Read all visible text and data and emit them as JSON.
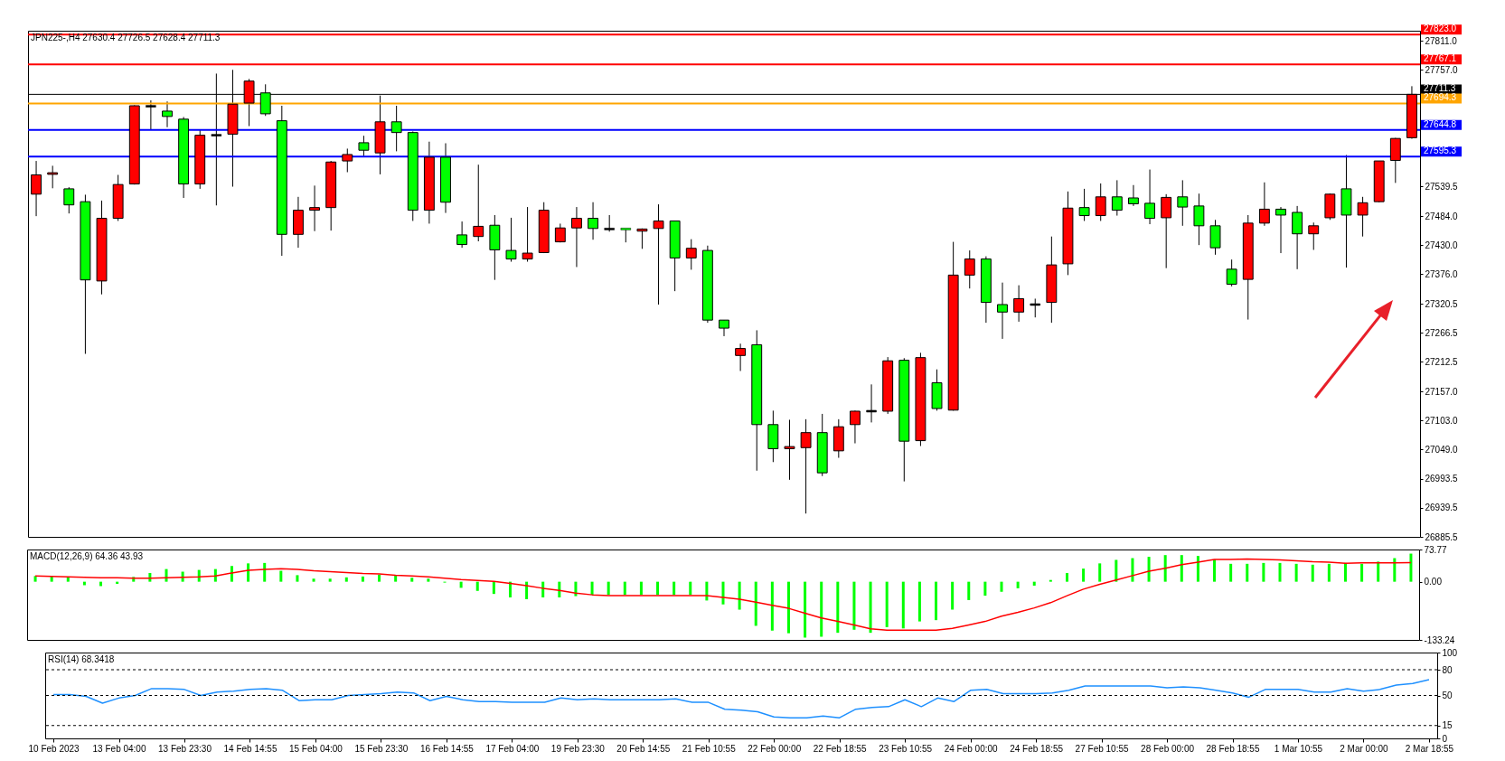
{
  "chart_data": [
    {
      "type": "candlestick",
      "title": "JPN225-,H4 27630.4 27726.5 27628.4 27711.3",
      "tick_labels": "y",
      "categories": [
        null,
        null,
        null,
        null,
        null,
        null,
        null,
        null,
        null,
        null,
        null,
        null,
        null,
        null,
        null,
        null,
        null,
        null,
        null,
        null,
        null,
        null,
        null,
        null,
        null,
        null,
        null,
        null,
        null,
        null,
        null,
        null,
        null,
        null,
        null,
        null,
        null,
        null,
        null,
        null,
        null,
        null,
        null,
        null,
        null,
        null,
        null,
        null,
        null,
        null,
        null,
        null,
        null,
        null,
        null,
        null,
        null,
        null,
        null,
        null,
        null,
        null,
        null,
        null,
        null,
        null,
        null,
        null,
        null,
        null,
        null,
        null,
        null,
        null,
        null,
        null,
        null,
        null,
        null,
        null,
        null,
        null,
        null,
        null,
        null
      ],
      "ohlc": [
        [
          27525,
          27587,
          27484,
          27561
        ],
        [
          27562,
          27578,
          27536,
          27565
        ],
        [
          27535,
          27538,
          27489,
          27505
        ],
        [
          27511,
          27524,
          27227,
          27365
        ],
        [
          27363,
          27513,
          27338,
          27480
        ],
        [
          27480,
          27561,
          27475,
          27543
        ],
        [
          27544,
          27691,
          27543,
          27690
        ],
        [
          27689,
          27700,
          27645,
          27689
        ],
        [
          27680,
          27698,
          27650,
          27670
        ],
        [
          27665,
          27669,
          27518,
          27544
        ],
        [
          27544,
          27646,
          27535,
          27635
        ],
        [
          27635,
          27750,
          27504,
          27635
        ],
        [
          27637,
          27757,
          27539,
          27693
        ],
        [
          27695,
          27740,
          27652,
          27736
        ],
        [
          27714,
          27730,
          27671,
          27675
        ],
        [
          27662,
          27690,
          27410,
          27450
        ],
        [
          27450,
          27520,
          27425,
          27495
        ],
        [
          27495,
          27541,
          27456,
          27500
        ],
        [
          27500,
          27587,
          27457,
          27585
        ],
        [
          27587,
          27610,
          27566,
          27599
        ],
        [
          27621,
          27634,
          27596,
          27607
        ],
        [
          27602,
          27709,
          27562,
          27660
        ],
        [
          27660,
          27690,
          27605,
          27640
        ],
        [
          27640,
          27642,
          27475,
          27495
        ],
        [
          27495,
          27623,
          27470,
          27594
        ],
        [
          27594,
          27620,
          27490,
          27510
        ],
        [
          27449,
          27474,
          27425,
          27431
        ],
        [
          27446,
          27580,
          27437,
          27465
        ],
        [
          27467,
          27486,
          27365,
          27421
        ],
        [
          27420,
          27481,
          27399,
          27404
        ],
        [
          27404,
          27501,
          27399,
          27415
        ],
        [
          27416,
          27510,
          27415,
          27495
        ],
        [
          27436,
          27470,
          27435,
          27462
        ],
        [
          27462,
          27501,
          27389,
          27480
        ],
        [
          27480,
          27510,
          27440,
          27461
        ],
        [
          27460,
          27486,
          27455,
          27460
        ],
        [
          27460,
          27460,
          27435,
          27460
        ],
        [
          27456,
          27461,
          27423,
          27460
        ],
        [
          27461,
          27506,
          27319,
          27475
        ],
        [
          27475,
          27475,
          27344,
          27406
        ],
        [
          27406,
          27441,
          27384,
          27424
        ],
        [
          27420,
          27429,
          27285,
          27290
        ],
        [
          27290,
          27290,
          27260,
          27275
        ],
        [
          27224,
          27246,
          27195,
          27237
        ],
        [
          27244,
          27271,
          27009,
          27095
        ],
        [
          27095,
          27121,
          27025,
          27050
        ],
        [
          27050,
          27104,
          26992,
          27054
        ],
        [
          27052,
          27105,
          26929,
          27080
        ],
        [
          27080,
          27115,
          26999,
          27005
        ],
        [
          27046,
          27105,
          27033,
          27091
        ],
        [
          27095,
          27121,
          27060,
          27120
        ],
        [
          27120,
          27170,
          27099,
          27120
        ],
        [
          27120,
          27221,
          27115,
          27214
        ],
        [
          27215,
          27219,
          26989,
          27064
        ],
        [
          27065,
          27229,
          27055,
          27220
        ],
        [
          27173,
          27198,
          27121,
          27125
        ],
        [
          27122,
          27436,
          27121,
          27374
        ],
        [
          27374,
          27420,
          27349,
          27404
        ],
        [
          27404,
          27409,
          27285,
          27323
        ],
        [
          27319,
          27360,
          27255,
          27305
        ],
        [
          27305,
          27355,
          27287,
          27330
        ],
        [
          27319,
          27330,
          27295,
          27319
        ],
        [
          27323,
          27446,
          27285,
          27393
        ],
        [
          27395,
          27530,
          27374,
          27499
        ],
        [
          27500,
          27535,
          27475,
          27485
        ],
        [
          27485,
          27545,
          27475,
          27520
        ],
        [
          27520,
          27551,
          27485,
          27495
        ],
        [
          27518,
          27542,
          27503,
          27507
        ],
        [
          27508,
          27571,
          27469,
          27480
        ],
        [
          27481,
          27525,
          27387,
          27519
        ],
        [
          27520,
          27551,
          27466,
          27501
        ],
        [
          27503,
          27526,
          27430,
          27466
        ],
        [
          27466,
          27477,
          27412,
          27425
        ],
        [
          27385,
          27403,
          27353,
          27357
        ],
        [
          27366,
          27486,
          27291,
          27471
        ],
        [
          27471,
          27547,
          27466,
          27497
        ],
        [
          27497,
          27501,
          27415,
          27486
        ],
        [
          27491,
          27503,
          27385,
          27451
        ],
        [
          27451,
          27472,
          27421,
          27466
        ],
        [
          27481,
          27526,
          27477,
          27525
        ],
        [
          27535,
          27598,
          27388,
          27486
        ],
        [
          27486,
          27520,
          27446,
          27509
        ],
        [
          27511,
          27587,
          27510,
          27587
        ],
        [
          27588,
          27630,
          27546,
          27629
        ],
        [
          27630.4,
          27726.5,
          27628.4,
          27711.3
        ]
      ],
      "colors": [
        "#ff0000",
        "#ff0000",
        "#00ff00",
        "#00ff00",
        "#ff0000",
        "#ff0000",
        "#ff0000",
        "#000000",
        "#00ff00",
        "#00ff00",
        "#ff0000",
        "#000000",
        "#ff0000",
        "#ff0000",
        "#00ff00",
        "#00ff00",
        "#ff0000",
        "#ff0000",
        "#ff0000",
        "#ff0000",
        "#00ff00",
        "#ff0000",
        "#00ff00",
        "#00ff00",
        "#ff0000",
        "#00ff00",
        "#00ff00",
        "#ff0000",
        "#00ff00",
        "#00ff00",
        "#ff0000",
        "#ff0000",
        "#ff0000",
        "#ff0000",
        "#00ff00",
        "#000000",
        "#00ff00",
        "#ff0000",
        "#ff0000",
        "#00ff00",
        "#ff0000",
        "#00ff00",
        "#00ff00",
        "#ff0000",
        "#00ff00",
        "#00ff00",
        "#ff0000",
        "#ff0000",
        "#00ff00",
        "#ff0000",
        "#ff0000",
        "#000000",
        "#ff0000",
        "#00ff00",
        "#ff0000",
        "#00ff00",
        "#ff0000",
        "#ff0000",
        "#00ff00",
        "#00ff00",
        "#ff0000",
        "#000000",
        "#ff0000",
        "#ff0000",
        "#00ff00",
        "#ff0000",
        "#00ff00",
        "#00ff00",
        "#00ff00",
        "#ff0000",
        "#00ff00",
        "#00ff00",
        "#00ff00",
        "#00ff00",
        "#ff0000",
        "#ff0000",
        "#00ff00",
        "#00ff00",
        "#ff0000",
        "#ff0000",
        "#00ff00",
        "#ff0000",
        "#ff0000",
        "#ff0000",
        "#ff0000"
      ],
      "ylim": [
        26885.5,
        27830
      ],
      "yticks": [
        {
          "value": 27811,
          "label": "27811.0"
        },
        {
          "value": 27757,
          "label": "27757.0"
        },
        27539.5,
        {
          "value": 27484,
          "label": "27484.0"
        },
        {
          "value": 27430,
          "label": "27430.0"
        },
        {
          "value": 27376,
          "label": "27376.0"
        },
        27320.5,
        27266.5,
        27212.5,
        {
          "value": 27157,
          "label": "27157.0"
        },
        {
          "value": 27103,
          "label": "27103.0"
        },
        {
          "value": 27049,
          "label": "27049.0"
        },
        26993.5,
        26939.5,
        26885.5
      ],
      "ref_lines": [
        {
          "axis": "y",
          "value": 27823.0,
          "label": "27823.0",
          "color": "#ff0000"
        },
        {
          "axis": "y",
          "value": 27767.1,
          "label": "27767.1",
          "color": "#ff0000"
        },
        {
          "axis": "y",
          "value": 27711.3,
          "label": "27711.3",
          "color": "#000000"
        },
        {
          "axis": "y",
          "value": 27694.3,
          "label": "27694.3",
          "color": "#ffa500"
        },
        {
          "axis": "y",
          "value": 27644.8,
          "label": "27644.8",
          "color": "#0000ff"
        },
        {
          "axis": "y",
          "value": 27595.3,
          "label": "27595.3",
          "color": "#0000ff"
        }
      ]
    },
    {
      "type": "bar",
      "title": "MACD(12,26,9) 64.36 43.93",
      "tick_labels": "y",
      "categories": [
        null,
        null,
        null,
        null,
        null,
        null,
        null,
        null,
        null,
        null,
        null,
        null,
        null,
        null,
        null,
        null,
        null,
        null,
        null,
        null,
        null,
        null,
        null,
        null,
        null,
        null,
        null,
        null,
        null,
        null,
        null,
        null,
        null,
        null,
        null,
        null,
        null,
        null,
        null,
        null,
        null,
        null,
        null,
        null,
        null,
        null,
        null,
        null,
        null,
        null,
        null,
        null,
        null,
        null,
        null,
        null,
        null,
        null,
        null,
        null,
        null,
        null,
        null,
        null,
        null,
        null,
        null,
        null,
        null,
        null,
        null,
        null,
        null,
        null,
        null,
        null,
        null,
        null,
        null,
        null,
        null,
        null,
        null,
        null,
        null
      ],
      "series": [
        {
          "type": "bar",
          "color": "#00ff00",
          "values": [
            13,
            12,
            11,
            -8,
            -10,
            -5,
            11,
            20,
            29,
            23,
            27,
            29,
            36,
            42,
            43,
            25,
            15,
            7,
            7,
            10,
            12,
            16,
            14,
            9,
            7,
            -2,
            -14,
            -21,
            -28,
            -36,
            -40,
            -36,
            -36,
            -33,
            -30,
            -30,
            -30,
            -30,
            -30,
            -30,
            -30,
            -43,
            -52,
            -64,
            -101,
            -112,
            -118,
            -128,
            -126,
            -117,
            -110,
            -117,
            -104,
            -107,
            -91,
            -88,
            -64,
            -42,
            -32,
            -23,
            -15,
            -9,
            4,
            20,
            30,
            42,
            50,
            54,
            57,
            61,
            61,
            59,
            51,
            41,
            41,
            43,
            43,
            41,
            39,
            41,
            43,
            41,
            46,
            54,
            64.36
          ]
        },
        {
          "type": "line",
          "color": "#ff0000",
          "values": [
            13,
            12,
            11,
            10,
            9,
            9,
            8,
            8,
            9,
            10,
            11,
            13,
            20,
            26,
            28,
            30,
            28,
            25,
            23,
            21,
            19,
            18,
            15,
            13,
            11,
            8,
            5,
            3,
            1,
            -4,
            -9,
            -15,
            -20,
            -26,
            -30,
            -32,
            -32,
            -32,
            -32,
            -32,
            -32,
            -32,
            -36,
            -40,
            -47,
            -54,
            -61,
            -72,
            -83,
            -91,
            -99,
            -108,
            -111,
            -111,
            -111,
            -111,
            -107,
            -99,
            -91,
            -79,
            -70,
            -60,
            -48,
            -32,
            -17,
            -6,
            4,
            14,
            24,
            31,
            39,
            45,
            51,
            51,
            52,
            51,
            50,
            48,
            46,
            45,
            42,
            43,
            43,
            43,
            43.93
          ]
        }
      ],
      "ylim": [
        -133.24,
        73.77
      ],
      "yticks": [
        73.77,
        {
          "value": 0,
          "label": "0.00"
        },
        -133.24
      ]
    },
    {
      "type": "line",
      "title": "RSI(14) 68.3418",
      "categories": [
        "10 Feb 2023",
        null,
        null,
        null,
        "13 Feb 04:00",
        null,
        null,
        null,
        "13 Feb 23:30",
        null,
        null,
        null,
        "14 Feb 14:55",
        null,
        null,
        null,
        "15 Feb 04:00",
        null,
        null,
        null,
        "15 Feb 23:30",
        null,
        null,
        null,
        "16 Feb 14:55",
        null,
        null,
        null,
        "17 Feb 04:00",
        null,
        null,
        null,
        "19 Feb 23:30",
        null,
        null,
        null,
        "20 Feb 14:55",
        null,
        null,
        null,
        "21 Feb 10:55",
        null,
        null,
        null,
        "22 Feb 00:00",
        null,
        null,
        null,
        "22 Feb 18:55",
        null,
        null,
        null,
        "23 Feb 10:55",
        null,
        null,
        null,
        "24 Feb 00:00",
        null,
        null,
        null,
        "24 Feb 18:55",
        null,
        null,
        null,
        "27 Feb 10:55",
        null,
        null,
        null,
        "28 Feb 00:00",
        null,
        null,
        null,
        "28 Feb 18:55",
        null,
        null,
        null,
        "1 Mar 10:55",
        null,
        null,
        null,
        "2 Mar 00:00",
        null,
        null,
        null,
        "2 Mar 18:55"
      ],
      "series": [
        {
          "color": "#1e90ff",
          "values": [
            51,
            51,
            49,
            41,
            47,
            50,
            58,
            58,
            57,
            50,
            54,
            55,
            57,
            58,
            56,
            44,
            45,
            45,
            50,
            51,
            52,
            54,
            53,
            44,
            49,
            45,
            43,
            43,
            42,
            42,
            42,
            47,
            45,
            46,
            45,
            45,
            45,
            45,
            46,
            42,
            42,
            34,
            33,
            31,
            25,
            24,
            24,
            26,
            24,
            34,
            36,
            37,
            45,
            37,
            47,
            43,
            56,
            57,
            52,
            52,
            52,
            53,
            56,
            61,
            61,
            61,
            61,
            61,
            59,
            60,
            59,
            56,
            53,
            48,
            57,
            57,
            57,
            54,
            54,
            58,
            55,
            57,
            62,
            64,
            68.3418
          ]
        }
      ],
      "ylim": [
        0,
        100
      ],
      "yticks": [
        100,
        80,
        50,
        15,
        0
      ],
      "ref_lines": [
        {
          "axis": "y",
          "value": 80,
          "color": "#000000",
          "line_style": "dashed"
        },
        {
          "axis": "y",
          "value": 50,
          "color": "#000000",
          "line_style": "dashed"
        },
        {
          "axis": "y",
          "value": 15,
          "color": "#000000",
          "line_style": "dashed"
        }
      ]
    }
  ]
}
